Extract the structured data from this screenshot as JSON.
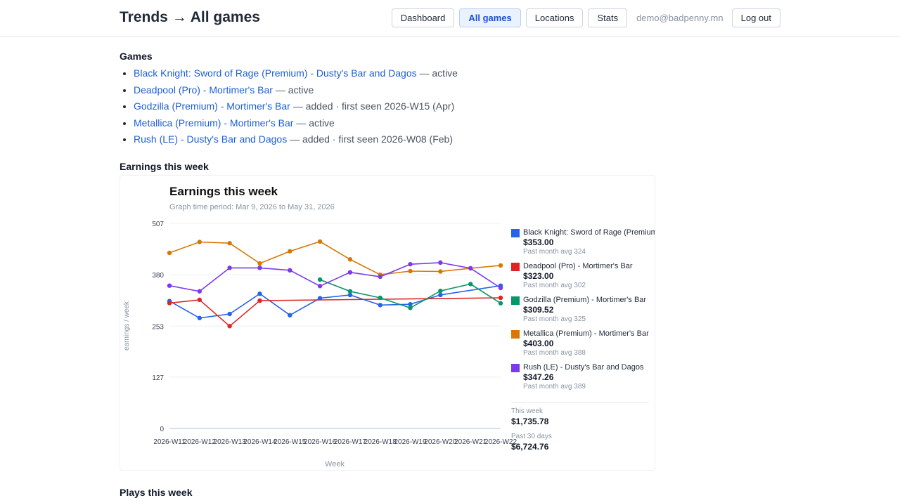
{
  "header": {
    "title": "Trends → All games",
    "nav": [
      "Dashboard",
      "All games",
      "Locations",
      "Stats"
    ],
    "user_email": "demo@badpenny.mn",
    "logout_label": "Log out"
  },
  "games_section": {
    "title": "Games",
    "items": [
      {
        "name": "Black Knight: Sword of Rage (Premium) - Dusty's Bar and Dagos",
        "status": "active"
      },
      {
        "name": "Deadpool (Pro) - Mortimer's Bar",
        "status": "active"
      },
      {
        "name": "Godzilla (Premium) - Mortimer's Bar",
        "status": "added · first seen 2026-W15 (Apr)"
      },
      {
        "name": "Metallica (Premium) - Mortimer's Bar",
        "status": "active"
      },
      {
        "name": "Rush (LE) - Dusty's Bar and Dagos",
        "status": "added · first seen 2026-W08 (Feb)"
      }
    ]
  },
  "earnings_section": {
    "title": "Earnings this week"
  },
  "plays_section": {
    "title": "Plays this week"
  },
  "chart_data": {
    "type": "line",
    "title": "Earnings this week",
    "subtitle": "Graph time period: Mar 9, 2026 to May 31, 2026",
    "xlabel": "Week",
    "ylabel": "earnings / week",
    "ylim": [
      0,
      507
    ],
    "yticks": [
      0,
      127,
      253,
      380,
      507
    ],
    "x": [
      "2026-W11",
      "2026-W12",
      "2026-W13",
      "2026-W14",
      "2026-W15",
      "2026-W16",
      "2026-W17",
      "2026-W18",
      "2026-W19",
      "2026-W20",
      "2026-W21",
      "2026-W22"
    ],
    "x_tick_labels": [
      "2026-W11",
      "2026-W12",
      "2026-W13",
      "2026-W14",
      "2026-W15",
      "2026-W16",
      "2026-W17",
      "2026-W18",
      "2026-W19",
      "2026-W20",
      "2026-W21",
      "2026-W22"
    ],
    "grid": true,
    "legend": "right",
    "series": [
      {
        "name": "Black Knight: Sword of Rage (Premium) - Dusty's Bar and Dagos",
        "color": "#2563eb",
        "values": [
          315,
          273,
          283,
          333,
          280,
          322,
          330,
          305,
          307,
          330,
          null,
          353
        ],
        "current": "$353.00",
        "avg": "Past month avg 324"
      },
      {
        "name": "Deadpool (Pro) - Mortimer's Bar",
        "color": "#dc2626",
        "values": [
          310,
          318,
          253,
          316,
          null,
          null,
          null,
          null,
          null,
          null,
          null,
          323
        ],
        "current": "$323.00",
        "avg": "Past month avg 302"
      },
      {
        "name": "Godzilla (Premium) - Mortimer's Bar",
        "color": "#059669",
        "values": [
          null,
          null,
          null,
          null,
          null,
          368,
          339,
          323,
          298,
          340,
          357,
          309.52
        ],
        "current": "$309.52",
        "avg": "Past month avg 325"
      },
      {
        "name": "Metallica (Premium) - Mortimer's Bar",
        "color": "#d97706",
        "values": [
          434,
          461,
          458,
          408,
          438,
          462,
          418,
          380,
          389,
          388,
          396,
          403
        ],
        "current": "$403.00",
        "avg": "Past month avg 388"
      },
      {
        "name": "Rush (LE) - Dusty's Bar and Dagos",
        "color": "#7c3aed",
        "values": [
          353,
          339,
          397,
          397,
          391,
          352,
          386,
          375,
          406,
          410,
          396,
          347.26
        ],
        "current": "$347.26",
        "avg": "Past month avg 389"
      }
    ],
    "totals": [
      {
        "label": "This week",
        "value": "$1,735.78"
      },
      {
        "label": "Past 30 days",
        "value": "$6,724.76"
      }
    ]
  }
}
